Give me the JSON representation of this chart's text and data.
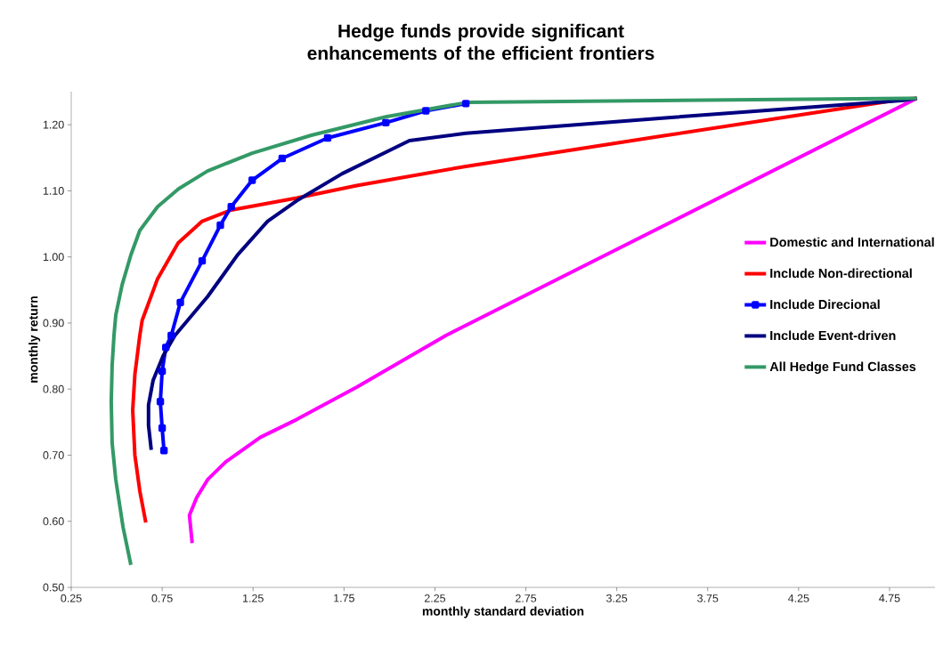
{
  "chart_data": {
    "type": "line",
    "title": "Hedge funds provide significant enhancements of the efficient frontiers",
    "xlabel": "monthly standard deviation",
    "ylabel": "monthly return",
    "xlim": [
      0.25,
      5.0
    ],
    "ylim": [
      0.5,
      1.25
    ],
    "xticks": [
      0.25,
      0.75,
      1.25,
      1.75,
      2.25,
      2.75,
      3.25,
      3.75,
      4.25,
      4.75
    ],
    "yticks": [
      {
        "value": 0.5,
        "label": "0.50"
      },
      {
        "value": 0.6,
        "label": "0.60"
      },
      {
        "value": 0.7,
        "label": "0.70"
      },
      {
        "value": 0.8,
        "label": "0.80"
      },
      {
        "value": 0.9,
        "label": "0.90"
      },
      {
        "value": 1.0,
        "label": "1.00"
      },
      {
        "value": 1.1,
        "label": "1.10"
      },
      {
        "value": 1.2,
        "label": "1.20"
      }
    ],
    "grid": false,
    "legend": "right",
    "line_style": "solid",
    "series": [
      {
        "name": "Domestic and  International",
        "color": "#ff00ff",
        "x": [
          0.915,
          0.9,
          0.94,
          1.0,
          1.1,
          1.29,
          1.49,
          1.82,
          2.31,
          2.8,
          3.5,
          4.2,
          4.9
        ],
        "values": [
          0.567,
          0.609,
          0.636,
          0.663,
          0.69,
          0.727,
          0.754,
          0.803,
          0.881,
          0.949,
          1.046,
          1.143,
          1.24
        ]
      },
      {
        "name": "Include Non-directional",
        "color": "#ff0000",
        "x": [
          0.66,
          0.627,
          0.6,
          0.588,
          0.6,
          0.627,
          0.64,
          0.725,
          0.838,
          0.97,
          1.13,
          1.49,
          1.82,
          2.42,
          3.5,
          4.83,
          4.9
        ],
        "values": [
          0.598,
          0.646,
          0.7,
          0.768,
          0.822,
          0.881,
          0.904,
          0.967,
          1.021,
          1.054,
          1.071,
          1.089,
          1.108,
          1.137,
          1.183,
          1.239,
          1.24
        ]
      },
      {
        "name": "Include Direcional",
        "color": "#0000ff",
        "marker": "square",
        "x": [
          0.76,
          0.75,
          0.74,
          0.75,
          0.77,
          0.8,
          0.85,
          0.97,
          1.07,
          1.13,
          1.245,
          1.41,
          1.66,
          1.98,
          2.2,
          2.42
        ],
        "values": [
          0.707,
          0.741,
          0.781,
          0.827,
          0.863,
          0.881,
          0.931,
          0.994,
          1.048,
          1.076,
          1.116,
          1.149,
          1.18,
          1.203,
          1.221,
          1.232
        ]
      },
      {
        "name": "Include Event-driven",
        "color": "#000080",
        "x": [
          0.69,
          0.675,
          0.675,
          0.7,
          0.755,
          0.82,
          1.0,
          1.165,
          1.33,
          1.49,
          1.74,
          2.11,
          2.42,
          3.5,
          4.83,
          4.9
        ],
        "values": [
          0.708,
          0.745,
          0.776,
          0.813,
          0.85,
          0.881,
          0.94,
          1.003,
          1.054,
          1.085,
          1.126,
          1.176,
          1.187,
          1.21,
          1.237,
          1.24
        ]
      },
      {
        "name": "All Hedge Fund Classes",
        "color": "#339966",
        "x": [
          0.578,
          0.535,
          0.495,
          0.475,
          0.47,
          0.475,
          0.485,
          0.495,
          0.53,
          0.578,
          0.627,
          0.725,
          0.84,
          1.0,
          1.245,
          1.57,
          1.98,
          2.39,
          2.44,
          4.9
        ],
        "values": [
          0.534,
          0.591,
          0.663,
          0.718,
          0.781,
          0.836,
          0.881,
          0.912,
          0.958,
          1.003,
          1.04,
          1.076,
          1.103,
          1.13,
          1.157,
          1.184,
          1.212,
          1.232,
          1.234,
          1.24
        ]
      }
    ]
  }
}
